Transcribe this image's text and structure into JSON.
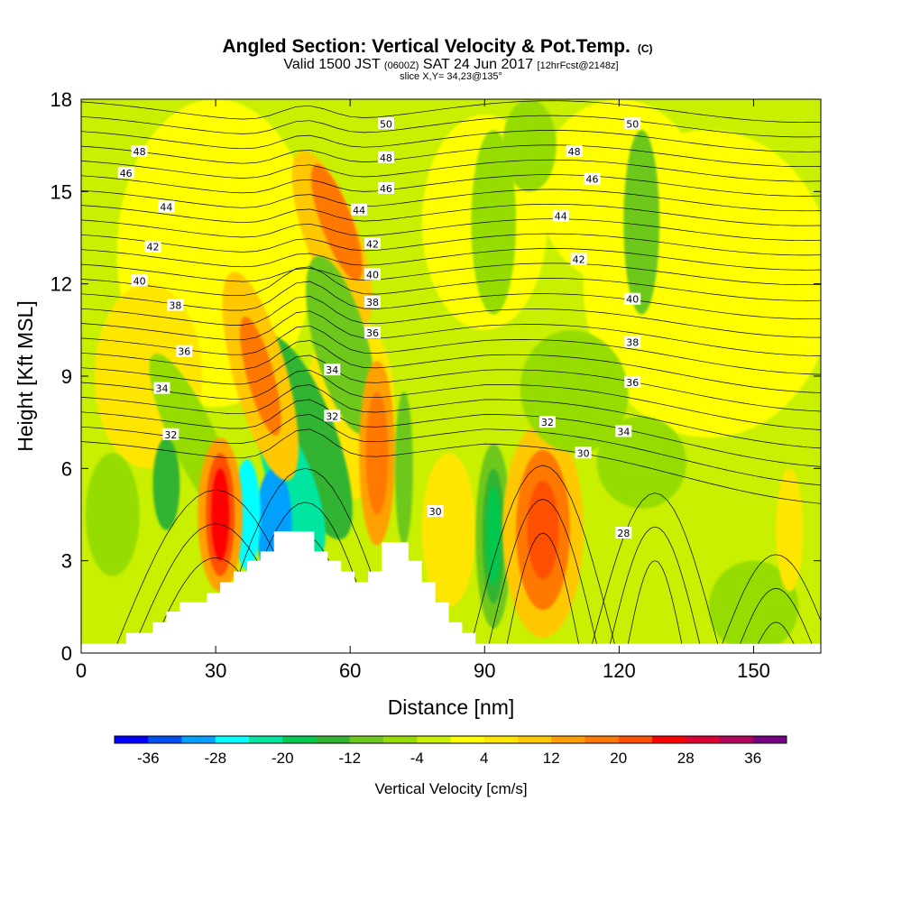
{
  "chart_data": {
    "type": "heatmap",
    "title": "Angled Section: Vertical Velocity & Pot.Temp.",
    "title_units": "(C)",
    "subtitle_parts": [
      "Valid 1500 JST",
      "(0600Z)",
      "SAT 24 Jun 2017",
      "[12hrFcst@2148z]"
    ],
    "slice_text": "slice X,Y= 34,23@135°",
    "xlabel": "Distance [nm]",
    "ylabel": "Height [Kft MSL]",
    "xlim": [
      0,
      165
    ],
    "ylim": [
      0,
      18
    ],
    "x_ticks": [
      "0",
      "30",
      "60",
      "90",
      "120",
      "150"
    ],
    "y_ticks": [
      "0",
      "3",
      "6",
      "9",
      "12",
      "15",
      "18"
    ],
    "colorbar": {
      "label": "Vertical Velocity [cm/s]",
      "tick_labels": [
        "-36",
        "-28",
        "-20",
        "-12",
        "-4",
        "4",
        "12",
        "20",
        "28",
        "36"
      ],
      "levels": [
        -40,
        -36,
        -32,
        -28,
        -24,
        -20,
        -16,
        -12,
        -8,
        -4,
        0,
        4,
        8,
        12,
        16,
        20,
        24,
        28,
        32,
        36,
        40
      ],
      "colors": [
        "#0000ff",
        "#0050f0",
        "#00a0ff",
        "#00ffff",
        "#00e6a0",
        "#00c850",
        "#32b432",
        "#6ec81e",
        "#96dc00",
        "#c8f000",
        "#ffff00",
        "#ffe600",
        "#ffc800",
        "#ffa000",
        "#ff7800",
        "#ff5000",
        "#ff0000",
        "#dc0032",
        "#b4005a",
        "#780082"
      ]
    },
    "terrain_profile": [
      {
        "x": 0,
        "y": 0.3
      },
      {
        "x": 10,
        "y": 0.3
      },
      {
        "x": 10,
        "y": 0.65
      },
      {
        "x": 16,
        "y": 0.65
      },
      {
        "x": 16,
        "y": 1.0
      },
      {
        "x": 19,
        "y": 1.0
      },
      {
        "x": 19,
        "y": 1.35
      },
      {
        "x": 22,
        "y": 1.35
      },
      {
        "x": 22,
        "y": 1.65
      },
      {
        "x": 28,
        "y": 1.65
      },
      {
        "x": 28,
        "y": 1.95
      },
      {
        "x": 31,
        "y": 1.95
      },
      {
        "x": 31,
        "y": 2.3
      },
      {
        "x": 34,
        "y": 2.3
      },
      {
        "x": 34,
        "y": 2.65
      },
      {
        "x": 37,
        "y": 2.65
      },
      {
        "x": 37,
        "y": 3.0
      },
      {
        "x": 40,
        "y": 3.0
      },
      {
        "x": 40,
        "y": 3.3
      },
      {
        "x": 43,
        "y": 3.3
      },
      {
        "x": 43,
        "y": 3.95
      },
      {
        "x": 52,
        "y": 3.95
      },
      {
        "x": 52,
        "y": 3.3
      },
      {
        "x": 55,
        "y": 3.3
      },
      {
        "x": 55,
        "y": 3.0
      },
      {
        "x": 58,
        "y": 3.0
      },
      {
        "x": 58,
        "y": 2.65
      },
      {
        "x": 61,
        "y": 2.65
      },
      {
        "x": 61,
        "y": 2.3
      },
      {
        "x": 64,
        "y": 2.3
      },
      {
        "x": 64,
        "y": 2.65
      },
      {
        "x": 67,
        "y": 2.65
      },
      {
        "x": 67,
        "y": 3.6
      },
      {
        "x": 73,
        "y": 3.6
      },
      {
        "x": 73,
        "y": 3.0
      },
      {
        "x": 76,
        "y": 3.0
      },
      {
        "x": 76,
        "y": 2.3
      },
      {
        "x": 79,
        "y": 2.3
      },
      {
        "x": 79,
        "y": 1.65
      },
      {
        "x": 82,
        "y": 1.65
      },
      {
        "x": 82,
        "y": 1.0
      },
      {
        "x": 85,
        "y": 1.0
      },
      {
        "x": 85,
        "y": 0.65
      },
      {
        "x": 88,
        "y": 0.65
      },
      {
        "x": 88,
        "y": 0.3
      },
      {
        "x": 165,
        "y": 0.3
      }
    ],
    "contour_labels": [
      {
        "text": "50",
        "x": 68,
        "y": 17.2
      },
      {
        "text": "50",
        "x": 123,
        "y": 17.2
      },
      {
        "text": "48",
        "x": 13,
        "y": 16.3
      },
      {
        "text": "48",
        "x": 68,
        "y": 16.1
      },
      {
        "text": "48",
        "x": 110,
        "y": 16.3
      },
      {
        "text": "46",
        "x": 10,
        "y": 15.6
      },
      {
        "text": "46",
        "x": 68,
        "y": 15.1
      },
      {
        "text": "46",
        "x": 114,
        "y": 15.4
      },
      {
        "text": "44",
        "x": 19,
        "y": 14.5
      },
      {
        "text": "44",
        "x": 62,
        "y": 14.4
      },
      {
        "text": "44",
        "x": 107,
        "y": 14.2
      },
      {
        "text": "42",
        "x": 16,
        "y": 13.2
      },
      {
        "text": "42",
        "x": 65,
        "y": 13.3
      },
      {
        "text": "42",
        "x": 111,
        "y": 12.8
      },
      {
        "text": "40",
        "x": 13,
        "y": 12.1
      },
      {
        "text": "40",
        "x": 65,
        "y": 12.3
      },
      {
        "text": "40",
        "x": 123,
        "y": 11.5
      },
      {
        "text": "38",
        "x": 21,
        "y": 11.3
      },
      {
        "text": "38",
        "x": 65,
        "y": 11.4
      },
      {
        "text": "38",
        "x": 123,
        "y": 10.1
      },
      {
        "text": "36",
        "x": 23,
        "y": 9.8
      },
      {
        "text": "36",
        "x": 65,
        "y": 10.4
      },
      {
        "text": "36",
        "x": 123,
        "y": 8.8
      },
      {
        "text": "34",
        "x": 18,
        "y": 8.6
      },
      {
        "text": "34",
        "x": 56,
        "y": 9.2
      },
      {
        "text": "34",
        "x": 121,
        "y": 7.2
      },
      {
        "text": "32",
        "x": 20,
        "y": 7.1
      },
      {
        "text": "32",
        "x": 56,
        "y": 7.7
      },
      {
        "text": "32",
        "x": 104,
        "y": 7.5
      },
      {
        "text": "30",
        "x": 112,
        "y": 6.5
      },
      {
        "text": "30",
        "x": 79,
        "y": 4.6
      },
      {
        "text": "28",
        "x": 121,
        "y": 3.9
      }
    ]
  }
}
